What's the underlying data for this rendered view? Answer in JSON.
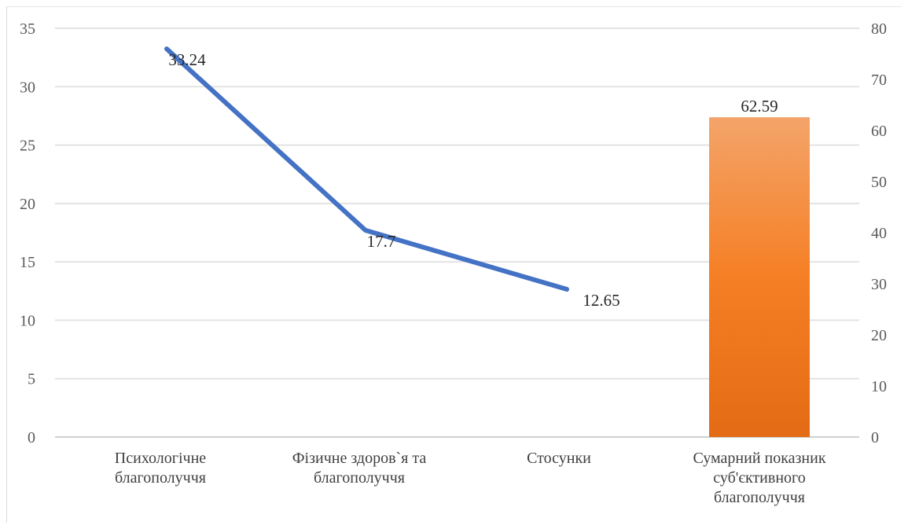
{
  "chart_data": {
    "type": "bar",
    "title": "",
    "xlabel": "",
    "ylabel": "",
    "categories": [
      [
        "Психологічне",
        "благополуччя"
      ],
      [
        "Фізичне здоров`я та",
        "благополуччя"
      ],
      [
        "Стосунки"
      ],
      [
        "Сумарний показник",
        "суб'єктивного",
        "благополуччя"
      ]
    ],
    "y_left": {
      "min": 0,
      "max": 35,
      "ticks": [
        "0",
        "5",
        "10",
        "15",
        "20",
        "25",
        "30",
        "35"
      ]
    },
    "y_right": {
      "min": 0,
      "max": 80,
      "ticks": [
        "0",
        "10",
        "20",
        "30",
        "40",
        "50",
        "60",
        "70",
        "80"
      ]
    },
    "grid": true,
    "series": [
      {
        "kind": "line",
        "axis": "left",
        "color": "#4472c4",
        "values": [
          33.24,
          17.7,
          12.65,
          null
        ],
        "labels": [
          "33.24",
          "17.7",
          "12.65",
          ""
        ]
      },
      {
        "kind": "bar",
        "axis": "right",
        "color_top": "#f4a46a",
        "color_mid": "#f57f24",
        "color_bottom": "#e36b15",
        "values": [
          null,
          null,
          null,
          62.59
        ],
        "labels": [
          "",
          "",
          "",
          "62.59"
        ]
      }
    ]
  }
}
